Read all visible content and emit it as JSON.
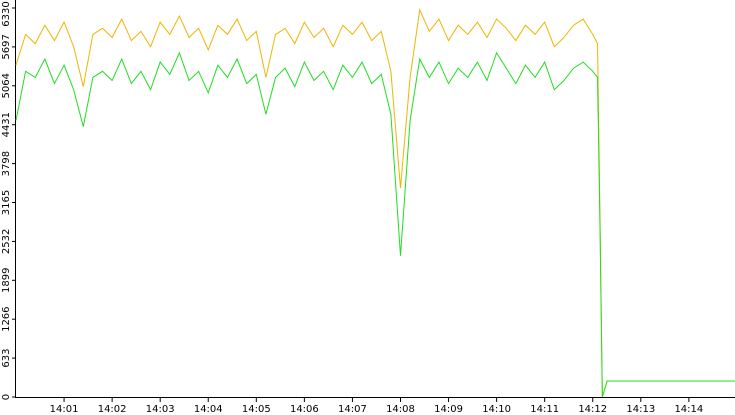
{
  "chart_data": {
    "type": "line",
    "x": [
      0,
      0.2,
      0.4,
      0.6,
      0.8,
      1.0,
      1.2,
      1.4,
      1.6,
      1.8,
      2.0,
      2.2,
      2.4,
      2.6,
      2.8,
      3.0,
      3.2,
      3.4,
      3.6,
      3.8,
      4.0,
      4.2,
      4.4,
      4.6,
      4.8,
      5.0,
      5.2,
      5.4,
      5.6,
      5.8,
      6.0,
      6.2,
      6.4,
      6.6,
      6.8,
      7.0,
      7.2,
      7.4,
      7.6,
      7.8,
      8.0,
      8.2,
      8.4,
      8.6,
      8.8,
      9.0,
      9.2,
      9.4,
      9.6,
      9.8,
      10.0,
      10.2,
      10.4,
      10.6,
      10.8,
      11.0,
      11.2,
      11.4,
      11.6,
      11.8,
      12.0,
      12.1,
      12.15,
      12.2,
      12.3,
      14.96
    ],
    "series": [
      {
        "color": "#f0b400",
        "values": [
          5400,
          5900,
          5750,
          6050,
          5800,
          6100,
          5700,
          5050,
          5900,
          6000,
          5850,
          6150,
          5800,
          5950,
          5700,
          6100,
          5900,
          6200,
          5850,
          6000,
          5650,
          6050,
          5900,
          6150,
          5800,
          5950,
          5200,
          5900,
          6000,
          5750,
          6100,
          5850,
          6000,
          5700,
          6050,
          5900,
          6100,
          5800,
          5950,
          5300,
          3400,
          5200,
          6300,
          5950,
          6150,
          5800,
          6050,
          5900,
          6100,
          5850,
          6150,
          6000,
          5800,
          6050,
          5900,
          6100,
          5700,
          5850,
          6050,
          6150,
          5900,
          5750,
          3000,
          0,
          260,
          260
        ]
      },
      {
        "color": "#22dd22",
        "values": [
          4500,
          5300,
          5200,
          5500,
          5100,
          5400,
          5000,
          4400,
          5200,
          5300,
          5150,
          5500,
          5100,
          5300,
          5000,
          5450,
          5250,
          5600,
          5150,
          5300,
          4950,
          5400,
          5200,
          5500,
          5100,
          5250,
          4600,
          5200,
          5350,
          5050,
          5450,
          5150,
          5300,
          5000,
          5400,
          5200,
          5450,
          5100,
          5250,
          4600,
          2300,
          4500,
          5500,
          5200,
          5450,
          5100,
          5350,
          5200,
          5450,
          5150,
          5600,
          5350,
          5100,
          5400,
          5200,
          5450,
          5000,
          5150,
          5350,
          5450,
          5300,
          5200,
          2800,
          0,
          260,
          260
        ]
      }
    ],
    "xlim": [
      0,
      14.96
    ],
    "xticks": [
      {
        "value": 1,
        "label": "14:01"
      },
      {
        "value": 2,
        "label": "14:02"
      },
      {
        "value": 3,
        "label": "14:03"
      },
      {
        "value": 4,
        "label": "14:04"
      },
      {
        "value": 5,
        "label": "14:05"
      },
      {
        "value": 6,
        "label": "14:06"
      },
      {
        "value": 7,
        "label": "14:07"
      },
      {
        "value": 8,
        "label": "14:08"
      },
      {
        "value": 9,
        "label": "14:09"
      },
      {
        "value": 10,
        "label": "14:10"
      },
      {
        "value": 11,
        "label": "14:11"
      },
      {
        "value": 12,
        "label": "14:12"
      },
      {
        "value": 13,
        "label": "14:13"
      },
      {
        "value": 14,
        "label": "14:14"
      }
    ],
    "ylim": [
      0,
      6330
    ],
    "yticks": [
      0,
      633,
      1266,
      1899,
      2532,
      3165,
      3798,
      4431,
      5064,
      5697,
      6330
    ]
  }
}
